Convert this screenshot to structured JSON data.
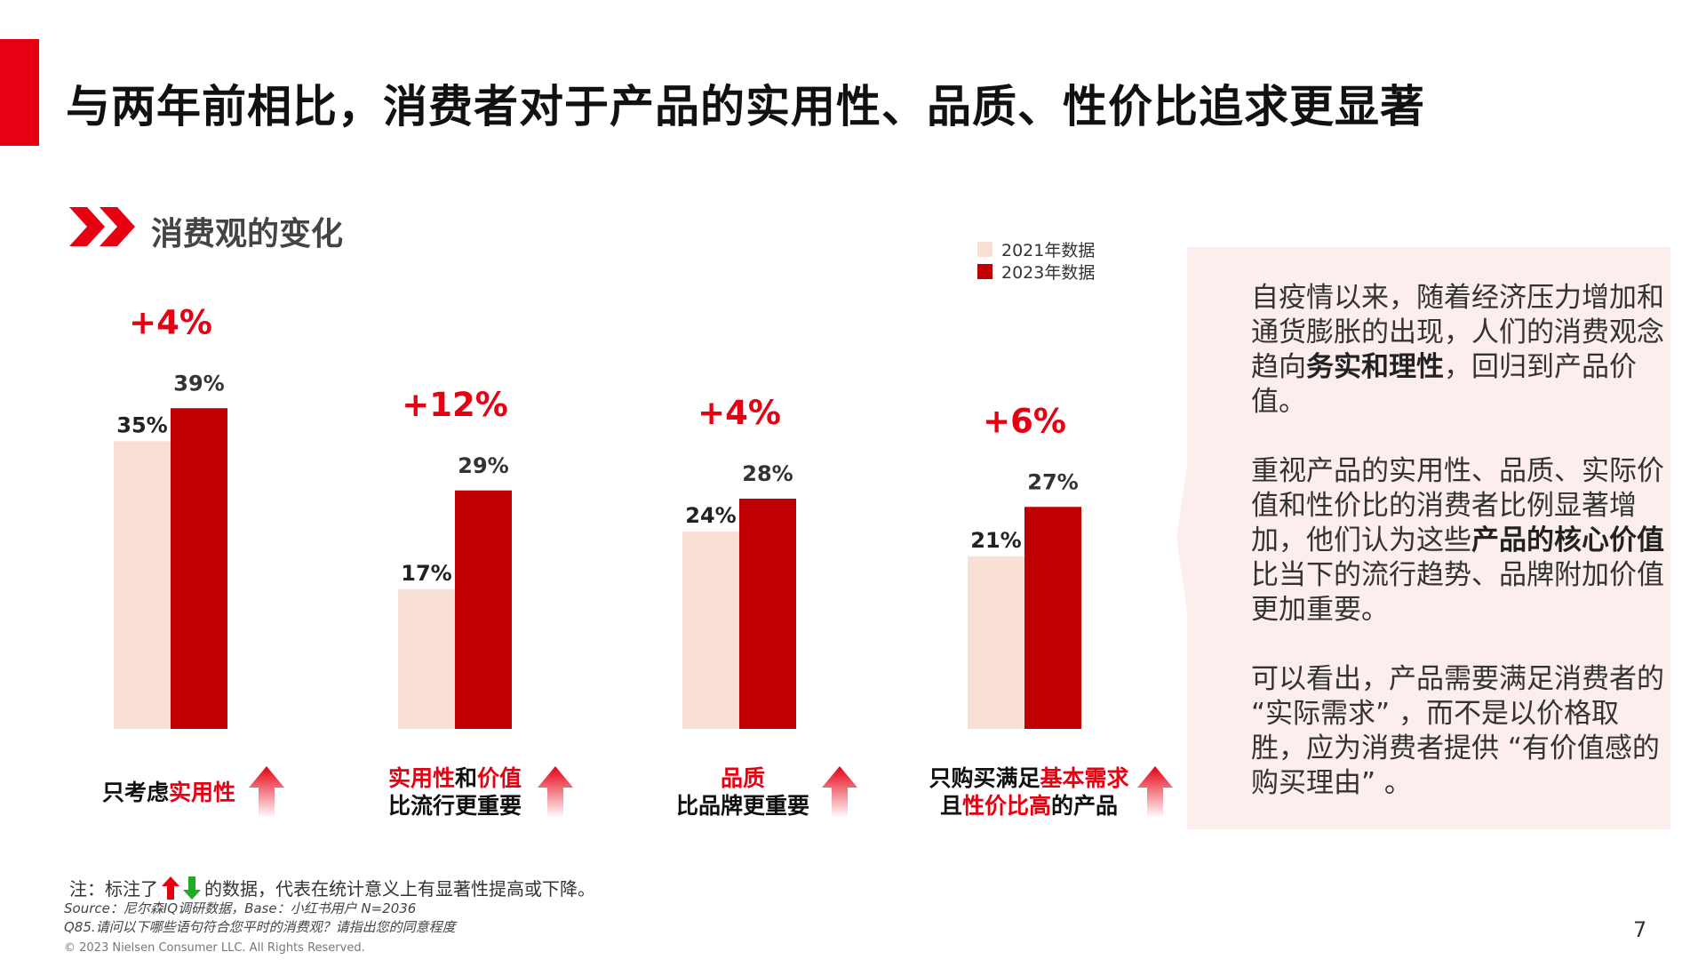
{
  "title": "与两年前相比，消费者对于产品的实用性、品质、性价比追求更显著",
  "section_title": "消费观的变化",
  "colors": {
    "brand_red": "#e60012",
    "bar_2021": "#f8e0d7",
    "bar_2023": "#c00000",
    "panel_bg": "#fdeeee"
  },
  "legend": [
    {
      "label": "2021年数据",
      "color": "#f8e0d7"
    },
    {
      "label": "2023年数据",
      "color": "#c00000"
    }
  ],
  "chart_data": {
    "type": "bar",
    "categories": [
      "只考虑实用性",
      "实用性和价值比流行更重要",
      "品质比品牌更重要",
      "只购买满足基本需求且性价比高的产品"
    ],
    "series": [
      {
        "name": "2021年数据",
        "values": [
          35,
          17,
          24,
          21
        ]
      },
      {
        "name": "2023年数据",
        "values": [
          39,
          29,
          28,
          27
        ]
      }
    ],
    "value_labels_2021": [
      "35%",
      "17%",
      "24%",
      "21%"
    ],
    "value_labels_2023": [
      "39%",
      "29%",
      "28%",
      "27%"
    ],
    "changes": [
      "+4%",
      "+12%",
      "+4%",
      "+6%"
    ],
    "ylim": [
      0,
      50
    ],
    "grid": false,
    "legend_position": "top-right"
  },
  "categories_display": [
    {
      "lines": [
        [
          {
            "t": "只考虑",
            "hl": false
          },
          {
            "t": "实用性",
            "hl": true
          }
        ]
      ]
    },
    {
      "lines": [
        [
          {
            "t": "实用性",
            "hl": true
          },
          {
            "t": "和",
            "hl": false
          },
          {
            "t": "价值",
            "hl": true
          }
        ],
        [
          {
            "t": "比流行更重要",
            "hl": false
          }
        ]
      ]
    },
    {
      "lines": [
        [
          {
            "t": "品质",
            "hl": true
          }
        ],
        [
          {
            "t": "比品牌更重要",
            "hl": false
          }
        ]
      ]
    },
    {
      "lines": [
        [
          {
            "t": "只购买满足",
            "hl": false
          },
          {
            "t": "基本需求",
            "hl": true
          }
        ],
        [
          {
            "t": "且",
            "hl": false
          },
          {
            "t": "性价比高",
            "hl": true
          },
          {
            "t": "的产品",
            "hl": false
          }
        ]
      ]
    }
  ],
  "panel": {
    "p1_a": "自疫情以来，随着经济压力增加和通货膨胀的出现，人们的消费观念趋向",
    "p1_b": "务实和理性",
    "p1_c": "，回归到产品价值。",
    "p2_a": "重视产品的实用性、品质、实际价值和性价比的消费者比例显著增加，他们认为这些",
    "p2_b": "产品的核心价值",
    "p2_c": "比当下的流行趋势、品牌附加价值更加重要。",
    "p3": "可以看出，产品需要满足消费者的 “实际需求” ，而不是以价格取胜，应为消费者提供 “有价值感的购买理由” 。"
  },
  "footnote_a": "注：标注了",
  "footnote_b": "的数据，代表在统计意义上有显著性提高或下降。",
  "source_line1": "Source：尼尔森IQ调研数据，Base：小红书用户 N=2036",
  "source_line2": "Q85.请问以下哪些语句符合您平时的消费观？请指出您的同意程度",
  "copyright": "© 2023 Nielsen Consumer LLC. All Rights Reserved.",
  "page_number": "7"
}
